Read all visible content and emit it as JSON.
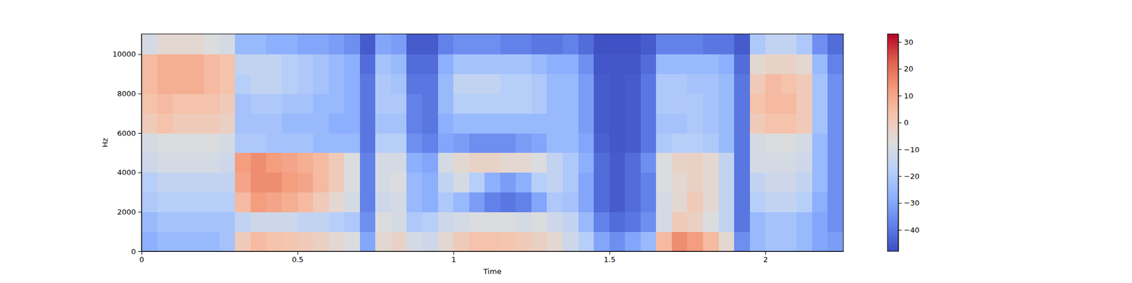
{
  "chart_data": {
    "type": "heatmap",
    "x_label": "Time",
    "y_label": "Hz",
    "xlim": [
      0,
      2.25
    ],
    "ylim": [
      0,
      11025
    ],
    "xticks": [
      0,
      0.5,
      1,
      1.5,
      2
    ],
    "yticks": [
      0,
      2000,
      4000,
      6000,
      8000,
      10000
    ],
    "x_bins": [
      0,
      0.05,
      0.1,
      0.15,
      0.2,
      0.25,
      0.3,
      0.35,
      0.4,
      0.45,
      0.5,
      0.55,
      0.6,
      0.65,
      0.7,
      0.75,
      0.8,
      0.85,
      0.9,
      0.95,
      1,
      1.05,
      1.1,
      1.15,
      1.2,
      1.25,
      1.3,
      1.35,
      1.4,
      1.45,
      1.5,
      1.55,
      1.6,
      1.65,
      1.7,
      1.75,
      1.8,
      1.85,
      1.9,
      1.95,
      2,
      2.05,
      2.1,
      2.15,
      2.2,
      2.25
    ],
    "y_bins": [
      0,
      1000,
      2000,
      3000,
      4000,
      5000,
      6000,
      7000,
      8000,
      9000,
      10000,
      11025
    ],
    "z": [
      [
        -28,
        -25,
        -25,
        -25,
        -25,
        -22,
        0,
        5,
        3,
        2,
        0,
        -2,
        -5,
        -8,
        -30,
        -5,
        -3,
        -10,
        -12,
        -5,
        0,
        3,
        3,
        2,
        0,
        -2,
        -5,
        -12,
        -18,
        -30,
        -35,
        -30,
        -25,
        5,
        15,
        12,
        5,
        -5,
        -35,
        -25,
        -22,
        -22,
        -25,
        -30,
        -32
      ],
      [
        -25,
        -22,
        -22,
        -22,
        -22,
        -22,
        -15,
        -12,
        -12,
        -12,
        -15,
        -15,
        -18,
        -20,
        -35,
        -8,
        -10,
        -20,
        -18,
        -12,
        -10,
        -8,
        -8,
        -8,
        -10,
        -8,
        -12,
        -15,
        -25,
        -38,
        -42,
        -40,
        -35,
        -10,
        0,
        -2,
        -8,
        -15,
        -40,
        -25,
        -22,
        -22,
        -25,
        -30,
        -35
      ],
      [
        -20,
        -18,
        -18,
        -18,
        -18,
        -18,
        5,
        12,
        10,
        8,
        5,
        0,
        -5,
        -10,
        -38,
        -12,
        -10,
        -25,
        -28,
        -20,
        -25,
        -32,
        -38,
        -40,
        -38,
        -30,
        -20,
        -22,
        -30,
        -42,
        -45,
        -42,
        -38,
        -10,
        -5,
        0,
        -5,
        -15,
        -40,
        -18,
        -15,
        -15,
        -18,
        -28,
        -35
      ],
      [
        -18,
        -15,
        -15,
        -15,
        -15,
        -15,
        10,
        15,
        15,
        12,
        10,
        5,
        0,
        -8,
        -38,
        -10,
        -8,
        -25,
        -28,
        -15,
        -10,
        -18,
        -28,
        -32,
        -28,
        -18,
        -15,
        -20,
        -30,
        -42,
        -45,
        -42,
        -38,
        -8,
        -5,
        -2,
        -5,
        -15,
        -40,
        -15,
        -12,
        -12,
        -15,
        -25,
        -35
      ],
      [
        -12,
        -10,
        -10,
        -10,
        -10,
        -12,
        12,
        15,
        12,
        10,
        8,
        5,
        0,
        -8,
        -38,
        -10,
        -10,
        -28,
        -30,
        -10,
        -5,
        -3,
        -3,
        -5,
        -5,
        -8,
        -15,
        -20,
        -28,
        -42,
        -45,
        -42,
        -35,
        -8,
        -3,
        -2,
        -5,
        -15,
        -40,
        -10,
        -10,
        -10,
        -12,
        -25,
        -35
      ],
      [
        -10,
        -8,
        -8,
        -8,
        -8,
        -10,
        -20,
        -20,
        -22,
        -22,
        -22,
        -25,
        -25,
        -25,
        -40,
        -18,
        -18,
        -35,
        -38,
        -30,
        -32,
        -35,
        -35,
        -35,
        -32,
        -30,
        -25,
        -25,
        -30,
        -44,
        -46,
        -45,
        -40,
        -20,
        -18,
        -18,
        -20,
        -25,
        -40,
        -10,
        -8,
        -8,
        -10,
        -25,
        -35
      ],
      [
        0,
        3,
        0,
        0,
        0,
        -2,
        -22,
        -22,
        -22,
        -25,
        -25,
        -25,
        -28,
        -28,
        -40,
        -22,
        -22,
        -38,
        -40,
        -28,
        -25,
        -25,
        -25,
        -25,
        -25,
        -25,
        -25,
        -25,
        -32,
        -45,
        -46,
        -45,
        -40,
        -22,
        -22,
        -20,
        -22,
        -25,
        -40,
        0,
        3,
        3,
        0,
        -22,
        -35
      ],
      [
        3,
        5,
        3,
        3,
        3,
        0,
        -22,
        -20,
        -20,
        -22,
        -22,
        -25,
        -25,
        -28,
        -40,
        -20,
        -20,
        -38,
        -40,
        -25,
        -18,
        -18,
        -18,
        -18,
        -18,
        -20,
        -25,
        -25,
        -32,
        -45,
        -46,
        -45,
        -40,
        -20,
        -20,
        -20,
        -22,
        -25,
        -40,
        3,
        5,
        5,
        0,
        -22,
        -35
      ],
      [
        5,
        8,
        8,
        8,
        5,
        3,
        -18,
        -15,
        -15,
        -18,
        -20,
        -22,
        -25,
        -28,
        -40,
        -20,
        -22,
        -40,
        -40,
        -25,
        -15,
        -15,
        -15,
        -18,
        -18,
        -20,
        -25,
        -25,
        -32,
        -45,
        -46,
        -45,
        -40,
        -20,
        -20,
        -22,
        -22,
        -25,
        -40,
        0,
        5,
        3,
        0,
        -22,
        -35
      ],
      [
        5,
        8,
        8,
        8,
        5,
        3,
        -15,
        -15,
        -15,
        -18,
        -20,
        -22,
        -25,
        -28,
        -42,
        -22,
        -25,
        -42,
        -42,
        -28,
        -22,
        -22,
        -22,
        -22,
        -22,
        -25,
        -28,
        -28,
        -35,
        -46,
        -46,
        -46,
        -42,
        -25,
        -25,
        -25,
        -25,
        -28,
        -42,
        -5,
        -3,
        -3,
        -5,
        -25,
        -38
      ],
      [
        -10,
        -5,
        -5,
        -5,
        -8,
        -10,
        -25,
        -25,
        -28,
        -28,
        -30,
        -30,
        -32,
        -35,
        -45,
        -30,
        -32,
        -45,
        -45,
        -38,
        -35,
        -35,
        -35,
        -38,
        -38,
        -40,
        -40,
        -38,
        -42,
        -47,
        -47,
        -47,
        -45,
        -38,
        -38,
        -38,
        -40,
        -40,
        -45,
        -20,
        -15,
        -15,
        -20,
        -35,
        -42
      ]
    ],
    "colorbar": {
      "range": [
        -48,
        33
      ],
      "ticks": [
        {
          "value": -40,
          "label": "−40"
        },
        {
          "value": -30,
          "label": "−30"
        },
        {
          "value": -20,
          "label": "−20"
        },
        {
          "value": -10,
          "label": "−10"
        },
        0,
        10,
        20,
        30
      ]
    }
  }
}
